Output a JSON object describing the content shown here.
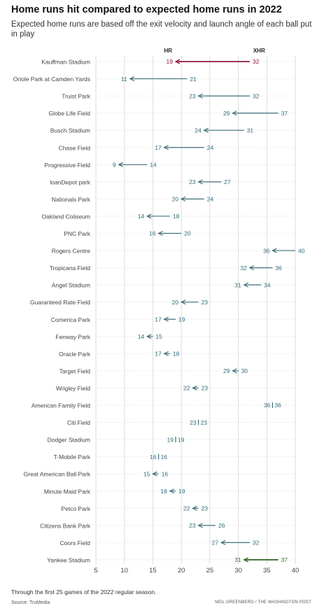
{
  "title": "Home runs hit compared to expected home runs in 2022",
  "subtitle": "Expected home runs are based off the exit velocity and launch angle of each ball put in play",
  "footnote": "Through the first 25 games of the 2022 regular season.",
  "source": "Source: TruMedia",
  "credit": "NEIL GREENBERG / THE WASHINGTON POST",
  "colors": {
    "default": "#2f6f80",
    "arrow_default": "#3f6f7a",
    "above": "#8b1a3c",
    "below": "#3b6e2a",
    "grid": "#d5d5d5",
    "stadium_label": "#444444"
  },
  "chart_data": {
    "type": "dumbbell",
    "title": "Home runs hit compared to expected home runs in 2022",
    "subtitle": "Expected home runs are based off the exit velocity and launch angle of each ball put in play",
    "series": [
      {
        "name": "HR",
        "key": "hr"
      },
      {
        "name": "XHR",
        "key": "xhr"
      }
    ],
    "xlim": [
      5,
      40
    ],
    "xticks": [
      5,
      10,
      15,
      20,
      25,
      30,
      35,
      40
    ],
    "grid": true,
    "rows": [
      {
        "stadium": "Kauffman Stadium",
        "hr": 19,
        "xhr": 32,
        "highlight": "above"
      },
      {
        "stadium": "Oriole Park at Camden Yards",
        "hr": 11,
        "xhr": 21
      },
      {
        "stadium": "Truist Park",
        "hr": 23,
        "xhr": 32
      },
      {
        "stadium": "Globe Life Field",
        "hr": 29,
        "xhr": 37
      },
      {
        "stadium": "Busch Stadium",
        "hr": 24,
        "xhr": 31
      },
      {
        "stadium": "Chase Field",
        "hr": 17,
        "xhr": 24
      },
      {
        "stadium": "Progressive Field",
        "hr": 9,
        "xhr": 14
      },
      {
        "stadium": "loanDepot park",
        "hr": 23,
        "xhr": 27
      },
      {
        "stadium": "Nationals Park",
        "hr": 20,
        "xhr": 24
      },
      {
        "stadium": "Oakland Coliseum",
        "hr": 14,
        "xhr": 18
      },
      {
        "stadium": "PNC Park",
        "hr": 16,
        "xhr": 20
      },
      {
        "stadium": "Rogers Centre",
        "hr": 36,
        "xhr": 40
      },
      {
        "stadium": "Tropicana Field",
        "hr": 32,
        "xhr": 36
      },
      {
        "stadium": "Angel Stadium",
        "hr": 31,
        "xhr": 34
      },
      {
        "stadium": "Guaranteed Rate Field",
        "hr": 20,
        "xhr": 23
      },
      {
        "stadium": "Comerica Park",
        "hr": 17,
        "xhr": 19
      },
      {
        "stadium": "Fenway Park",
        "hr": 14,
        "xhr": 15
      },
      {
        "stadium": "Oracle Park",
        "hr": 17,
        "xhr": 18
      },
      {
        "stadium": "Target Field",
        "hr": 29,
        "xhr": 30
      },
      {
        "stadium": "Wrigley Field",
        "hr": 22,
        "xhr": 23
      },
      {
        "stadium": "American Family Field",
        "hr": 36,
        "xhr": 36
      },
      {
        "stadium": "Citi Field",
        "hr": 23,
        "xhr": 23
      },
      {
        "stadium": "Dodger Stadium",
        "hr": 19,
        "xhr": 19
      },
      {
        "stadium": "T-Mobile Park",
        "hr": 16,
        "xhr": 16
      },
      {
        "stadium": "Great American Ball Park",
        "hr": 15,
        "xhr": 16
      },
      {
        "stadium": "Minute Maid Park",
        "hr": 18,
        "xhr": 19
      },
      {
        "stadium": "Petco Park",
        "hr": 22,
        "xhr": 23
      },
      {
        "stadium": "Citizens Bank Park",
        "hr": 23,
        "xhr": 26
      },
      {
        "stadium": "Coors Field",
        "hr": 27,
        "xhr": 32
      },
      {
        "stadium": "Yankee Stadium",
        "hr": 31,
        "xhr": 37,
        "highlight": "below"
      }
    ]
  }
}
